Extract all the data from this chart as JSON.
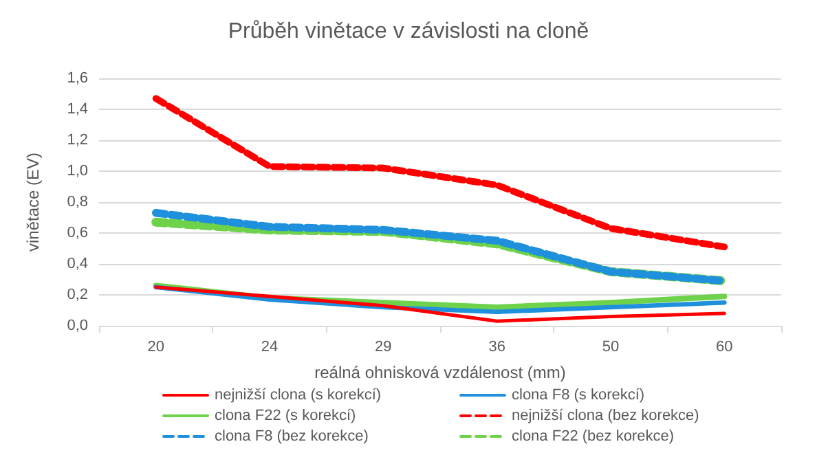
{
  "chart_data": {
    "type": "line",
    "title": "Průběh vinětace v závislosti na cloně",
    "xlabel": "reálná ohnisková vzdálenost (mm)",
    "ylabel": "vinětace (EV)",
    "categories": [
      "20",
      "24",
      "29",
      "36",
      "50",
      "60"
    ],
    "series": [
      {
        "name": "nejnižší clona (s korekcí)",
        "color": "#ff0000",
        "line_style": "solid",
        "values": [
          0.25,
          0.19,
          0.13,
          0.03,
          0.06,
          0.08
        ]
      },
      {
        "name": "clona F8 (s korekcí)",
        "color": "#1e90dc",
        "line_style": "solid",
        "values": [
          0.25,
          0.17,
          0.12,
          0.09,
          0.12,
          0.15
        ]
      },
      {
        "name": "clona F22 (s korekcí)",
        "color": "#6ed24b",
        "line_style": "solid",
        "values": [
          0.26,
          0.18,
          0.15,
          0.12,
          0.15,
          0.19
        ]
      },
      {
        "name": "nejnižší clona (bez korekce)",
        "color": "#ff0000",
        "line_style": "dashed",
        "values": [
          1.47,
          1.03,
          1.02,
          0.91,
          0.63,
          0.51
        ]
      },
      {
        "name": "clona F8 (bez korekce)",
        "color": "#1e90dc",
        "line_style": "dashed",
        "values": [
          0.73,
          0.64,
          0.62,
          0.55,
          0.35,
          0.29
        ]
      },
      {
        "name": "clona F22 (bez korekce)",
        "color": "#6ed24b",
        "line_style": "dashed",
        "values": [
          0.67,
          0.62,
          0.61,
          0.53,
          0.35,
          0.29
        ]
      }
    ],
    "ylim": [
      0,
      1.6
    ],
    "yticks": [
      {
        "value": 0,
        "label": "0,0"
      },
      {
        "value": 0.2,
        "label": "0,2"
      },
      {
        "value": 0.4,
        "label": "0,4"
      },
      {
        "value": 0.6,
        "label": "0,6"
      },
      {
        "value": 0.8,
        "label": "0,8"
      },
      {
        "value": 1.0,
        "label": "1,0"
      },
      {
        "value": 1.2,
        "label": "1,2"
      },
      {
        "value": 1.4,
        "label": "1,4"
      },
      {
        "value": 1.6,
        "label": "1,6"
      }
    ],
    "grid": "y",
    "legend": "bottom",
    "marker": "none"
  }
}
